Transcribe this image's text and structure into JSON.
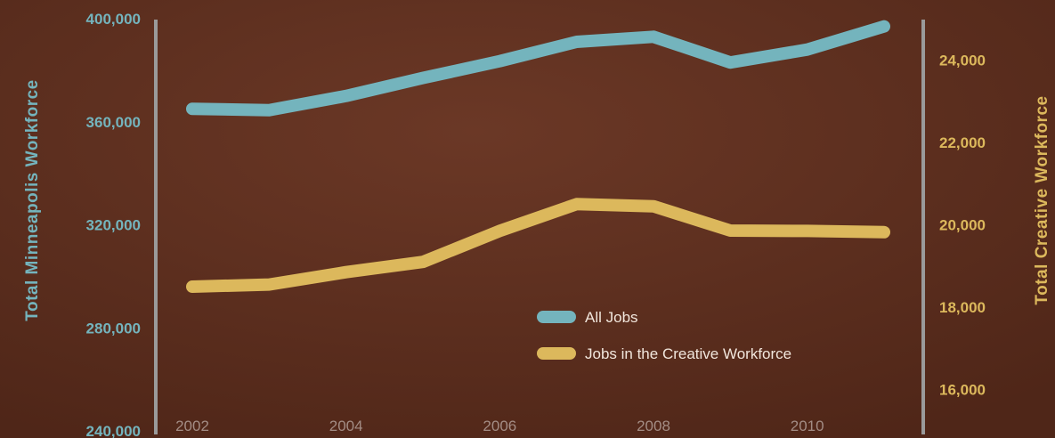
{
  "colors": {
    "background": "#5a2c1c",
    "background_light": "#6a3624",
    "all_jobs": "#74b4bd",
    "creative": "#dcb85c",
    "axis_line": "#9a9a9a",
    "x_tick_text": "#a38c84",
    "legend_text": "#f1e6dc"
  },
  "chart_data": {
    "type": "line",
    "x": [
      2002,
      2003,
      2004,
      2005,
      2006,
      2007,
      2008,
      2009,
      2010,
      2011
    ],
    "x_ticks": [
      "2002",
      "2004",
      "2006",
      "2008",
      "2010"
    ],
    "xlim": [
      2002,
      2011
    ],
    "left_axis": {
      "label": "Total Minneapolis Workforce",
      "ylim": [
        240000,
        400000
      ],
      "ticks": [
        "400,000",
        "360,000",
        "320,000",
        "280,000",
        "240,000"
      ],
      "tick_values": [
        400000,
        360000,
        320000,
        280000,
        240000
      ]
    },
    "right_axis": {
      "label": "Total Creative Workforce",
      "ylim": [
        15000,
        25000
      ],
      "ticks": [
        "24,000",
        "22,000",
        "20,000",
        "18,000",
        "16,000"
      ],
      "tick_values": [
        24000,
        22000,
        20000,
        18000,
        16000
      ]
    },
    "series": [
      {
        "name": "All Jobs",
        "axis": "left",
        "color": "#74b4bd",
        "values": [
          365000,
          364500,
          370000,
          377000,
          383500,
          391000,
          393000,
          383000,
          388000,
          397000
        ]
      },
      {
        "name": "Jobs in the Creative Workforce",
        "axis": "right",
        "color": "#dcb85c",
        "values": [
          18500,
          18550,
          18850,
          19100,
          19850,
          20500,
          20450,
          19860,
          19850,
          19820
        ]
      }
    ],
    "legend_position": "bottom-center",
    "grid": false
  }
}
